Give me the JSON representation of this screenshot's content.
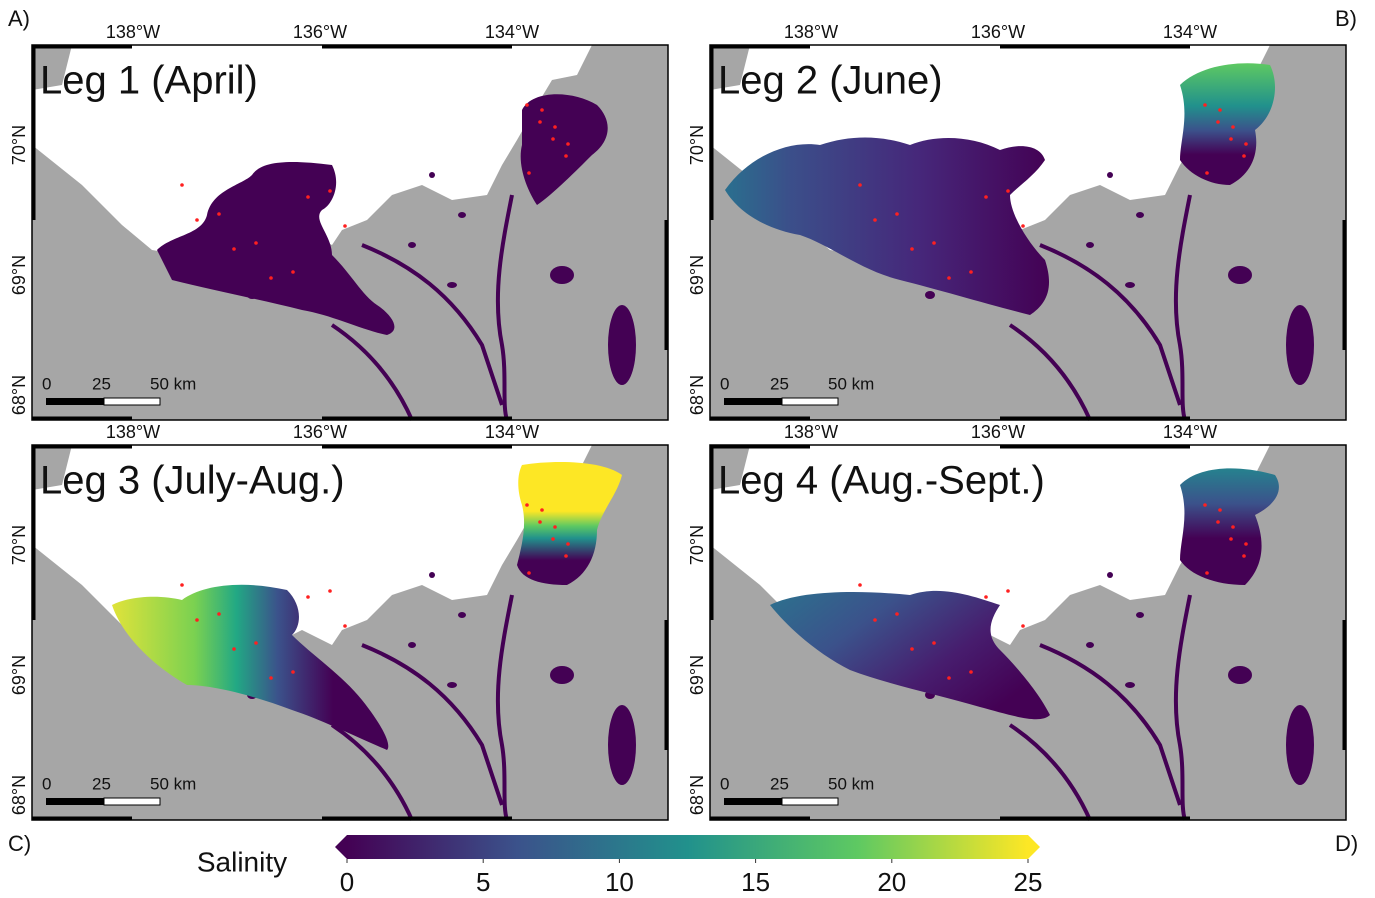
{
  "corner_labels": [
    "A)",
    "B)",
    "C)",
    "D)"
  ],
  "panels": [
    {
      "title": "Leg 1 (April)",
      "lon_labels": [
        "138°W",
        "136°W",
        "134°W"
      ],
      "lat_labels": [
        "70°N",
        "69°N",
        "68°N"
      ],
      "scale_labels": [
        "0",
        "25",
        "50 km"
      ]
    },
    {
      "title": "Leg 2 (June)",
      "lon_labels": [
        "138°W",
        "136°W",
        "134°W"
      ],
      "lat_labels": [
        "70°N",
        "69°N",
        "68°N"
      ],
      "scale_labels": [
        "0",
        "25",
        "50 km"
      ]
    },
    {
      "title": "Leg 3 (July-Aug.)",
      "lon_labels": [
        "138°W",
        "136°W",
        "134°W"
      ],
      "lat_labels": [
        "70°N",
        "69°N",
        "68°N"
      ],
      "scale_labels": [
        "0",
        "25",
        "50 km"
      ]
    },
    {
      "title": "Leg 4 (Aug.-Sept.)",
      "lon_labels": [
        "138°W",
        "136°W",
        "134°W"
      ],
      "lat_labels": [
        "70°N",
        "69°N",
        "68°N"
      ],
      "scale_labels": [
        "0",
        "25",
        "50 km"
      ]
    }
  ],
  "colorbar": {
    "label": "Salinity",
    "range": [
      0,
      25
    ],
    "ticks": [
      0,
      5,
      10,
      15,
      20,
      25
    ]
  }
}
